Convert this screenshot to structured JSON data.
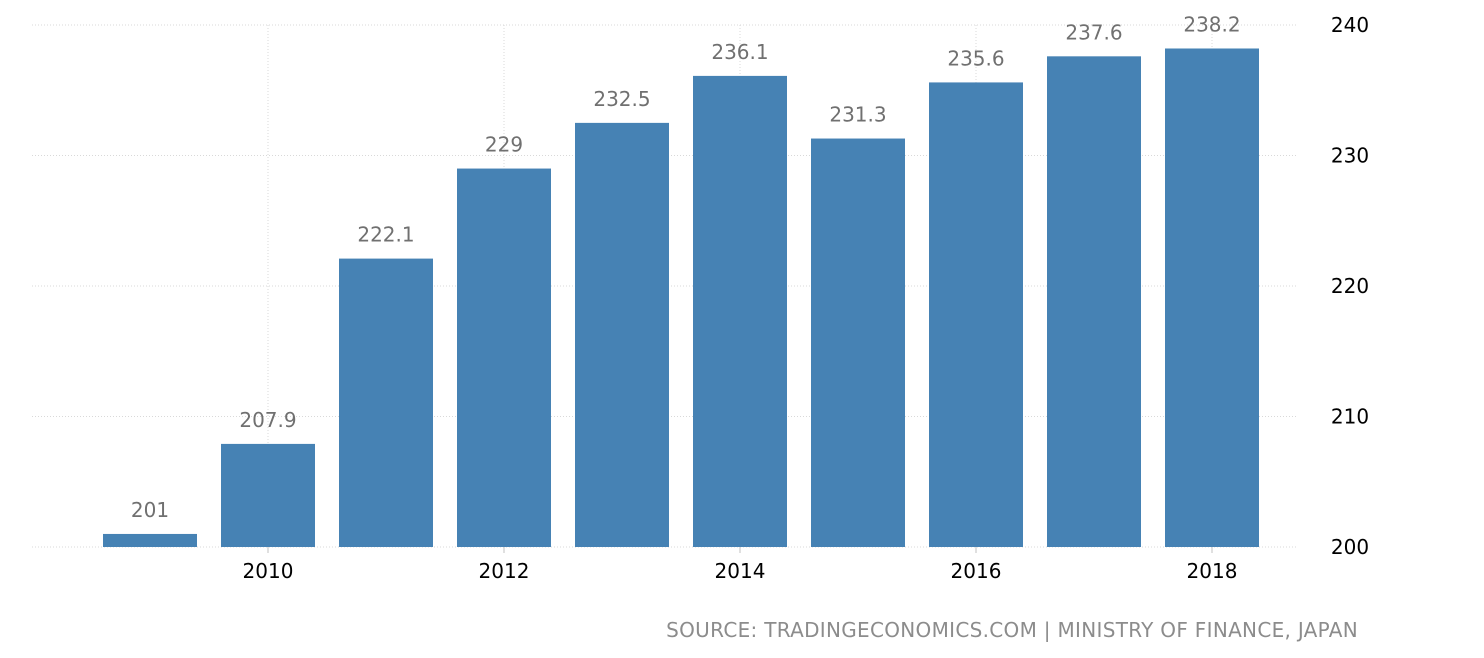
{
  "chart_data": {
    "type": "bar",
    "categories": [
      "2009",
      "2010",
      "2011",
      "2012",
      "2013",
      "2014",
      "2015",
      "2016",
      "2017",
      "2018"
    ],
    "values": [
      201,
      207.9,
      222.1,
      229,
      232.5,
      236.1,
      231.3,
      235.6,
      237.6,
      238.2
    ],
    "data_labels": [
      "201",
      "207.9",
      "222.1",
      "229",
      "232.5",
      "236.1",
      "231.3",
      "235.6",
      "237.6",
      "238.2"
    ],
    "x_tick_labels": [
      "2010",
      "2012",
      "2014",
      "2016",
      "2018"
    ],
    "y_ticks": [
      200,
      210,
      220,
      230,
      240
    ],
    "ylim": [
      200,
      240
    ],
    "y_axis_side": "right",
    "grid": true,
    "title": "",
    "xlabel": "",
    "ylabel": "",
    "colors": {
      "bar": "#4682b4",
      "grid": "#d9d9d9",
      "data_label": "#707070",
      "source": "#8c8c8c"
    }
  },
  "source_text": "SOURCE: TRADINGECONOMICS.COM | MINISTRY OF FINANCE, JAPAN"
}
